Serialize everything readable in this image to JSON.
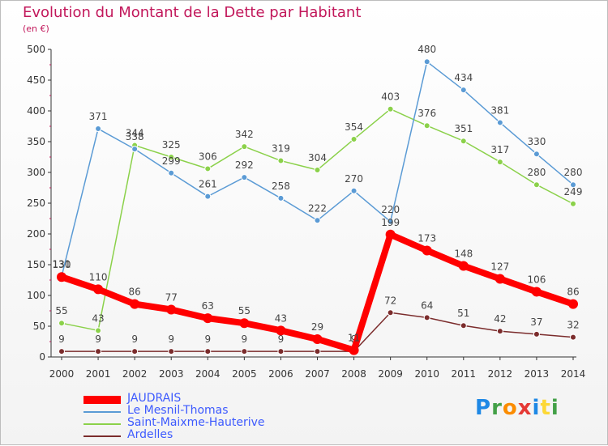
{
  "chart_data": {
    "type": "line",
    "title": "Evolution du Montant de la Dette par Habitant",
    "subtitle": "(en €)",
    "x": [
      "2000",
      "2001",
      "2002",
      "2003",
      "2004",
      "2005",
      "2006",
      "2007",
      "2008",
      "2009",
      "2010",
      "2011",
      "2012",
      "2013",
      "2014"
    ],
    "ylim": [
      0,
      500
    ],
    "yticks": [
      0,
      50,
      100,
      150,
      200,
      250,
      300,
      350,
      400,
      450,
      500
    ],
    "grid": false,
    "series": [
      {
        "name": "Ardelles",
        "color": "#7b2c2c",
        "values": [
          9,
          9,
          9,
          9,
          9,
          9,
          9,
          9,
          9,
          72,
          64,
          51,
          42,
          37,
          32
        ]
      },
      {
        "name": "Saint-Maixme-Hauterive",
        "color": "#8bd14a",
        "values": [
          55,
          43,
          344,
          325,
          306,
          342,
          319,
          304,
          354,
          403,
          376,
          351,
          317,
          280,
          249
        ]
      },
      {
        "name": "Le Mesnil-Thomas",
        "color": "#5b9bd5",
        "values": [
          131,
          371,
          338,
          299,
          261,
          292,
          258,
          222,
          270,
          220,
          480,
          434,
          381,
          330,
          280
        ]
      },
      {
        "name": "JAUDRAIS",
        "color": "#ff0000",
        "values": [
          130,
          110,
          86,
          77,
          63,
          55,
          43,
          29,
          11,
          199,
          173,
          148,
          127,
          106,
          86
        ]
      }
    ]
  },
  "legend": {
    "items": [
      {
        "label": "JAUDRAIS",
        "color": "#ff0000"
      },
      {
        "label": "Le Mesnil-Thomas",
        "color": "#5b9bd5"
      },
      {
        "label": "Saint-Maixme-Hauterive",
        "color": "#8bd14a"
      },
      {
        "label": "Ardelles",
        "color": "#7b2c2c"
      }
    ]
  },
  "logo": {
    "text": "Proxiti"
  }
}
